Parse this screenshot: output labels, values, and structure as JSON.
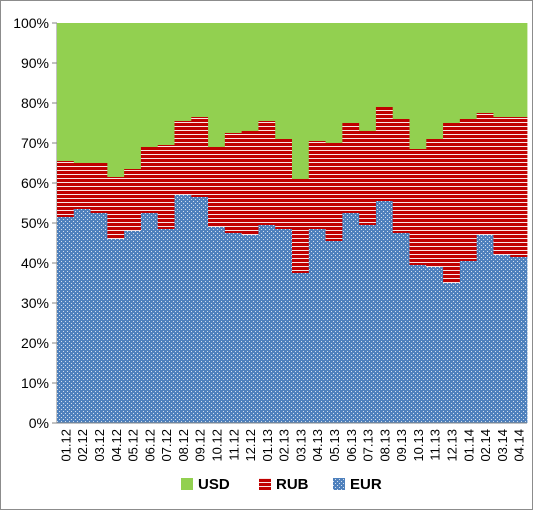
{
  "chart_data": {
    "type": "bar",
    "stacked": true,
    "categories": [
      "01.12",
      "02.12",
      "03.12",
      "04.12",
      "05.12",
      "06.12",
      "07.12",
      "08.12",
      "09.12",
      "10.12",
      "11.12",
      "12.12",
      "01.13",
      "02.13",
      "03.13",
      "04.13",
      "05.13",
      "06.13",
      "07.13",
      "08.13",
      "09.13",
      "10.13",
      "11.13",
      "12.13",
      "01.14",
      "02.14",
      "03.14",
      "04.14"
    ],
    "series": [
      {
        "name": "EUR",
        "color": "#4f81bd",
        "pattern": "dotted",
        "values": [
          51.5,
          53.5,
          52.5,
          46,
          48,
          52.5,
          48.5,
          57,
          56.5,
          49,
          47.5,
          47,
          49.5,
          48.5,
          37.5,
          48.5,
          45.5,
          52.5,
          49.5,
          55.5,
          47.5,
          39.5,
          39,
          35,
          40.5,
          47,
          42,
          41.5
        ]
      },
      {
        "name": "RUB",
        "color": "#c00000",
        "pattern": "horizontal-stripes",
        "values": [
          14,
          11.5,
          12.5,
          15.5,
          15.5,
          16.5,
          21,
          18.5,
          20,
          20,
          25,
          26,
          26,
          22.5,
          23.5,
          22,
          24.5,
          22.5,
          23.5,
          23.5,
          28.5,
          29,
          32,
          40,
          35.5,
          30.5,
          34.5,
          35
        ]
      },
      {
        "name": "USD",
        "color": "#92d050",
        "pattern": "solid",
        "values": [
          34.5,
          35,
          35,
          38.5,
          36.5,
          31,
          30.5,
          24.5,
          23.5,
          31,
          27.5,
          27,
          24.5,
          29,
          39,
          29.5,
          30,
          25,
          27,
          21,
          24,
          31.5,
          29,
          25,
          24,
          22.5,
          23.5,
          23.5
        ]
      }
    ],
    "y_ticks": [
      "0%",
      "10%",
      "20%",
      "30%",
      "40%",
      "50%",
      "60%",
      "70%",
      "80%",
      "90%",
      "100%"
    ],
    "ylim": [
      0,
      100
    ],
    "y_unit": "%",
    "grid": false,
    "legend_position": "bottom",
    "legend_order": [
      "USD",
      "RUB",
      "EUR"
    ],
    "title": "",
    "xlabel": "",
    "ylabel": ""
  }
}
